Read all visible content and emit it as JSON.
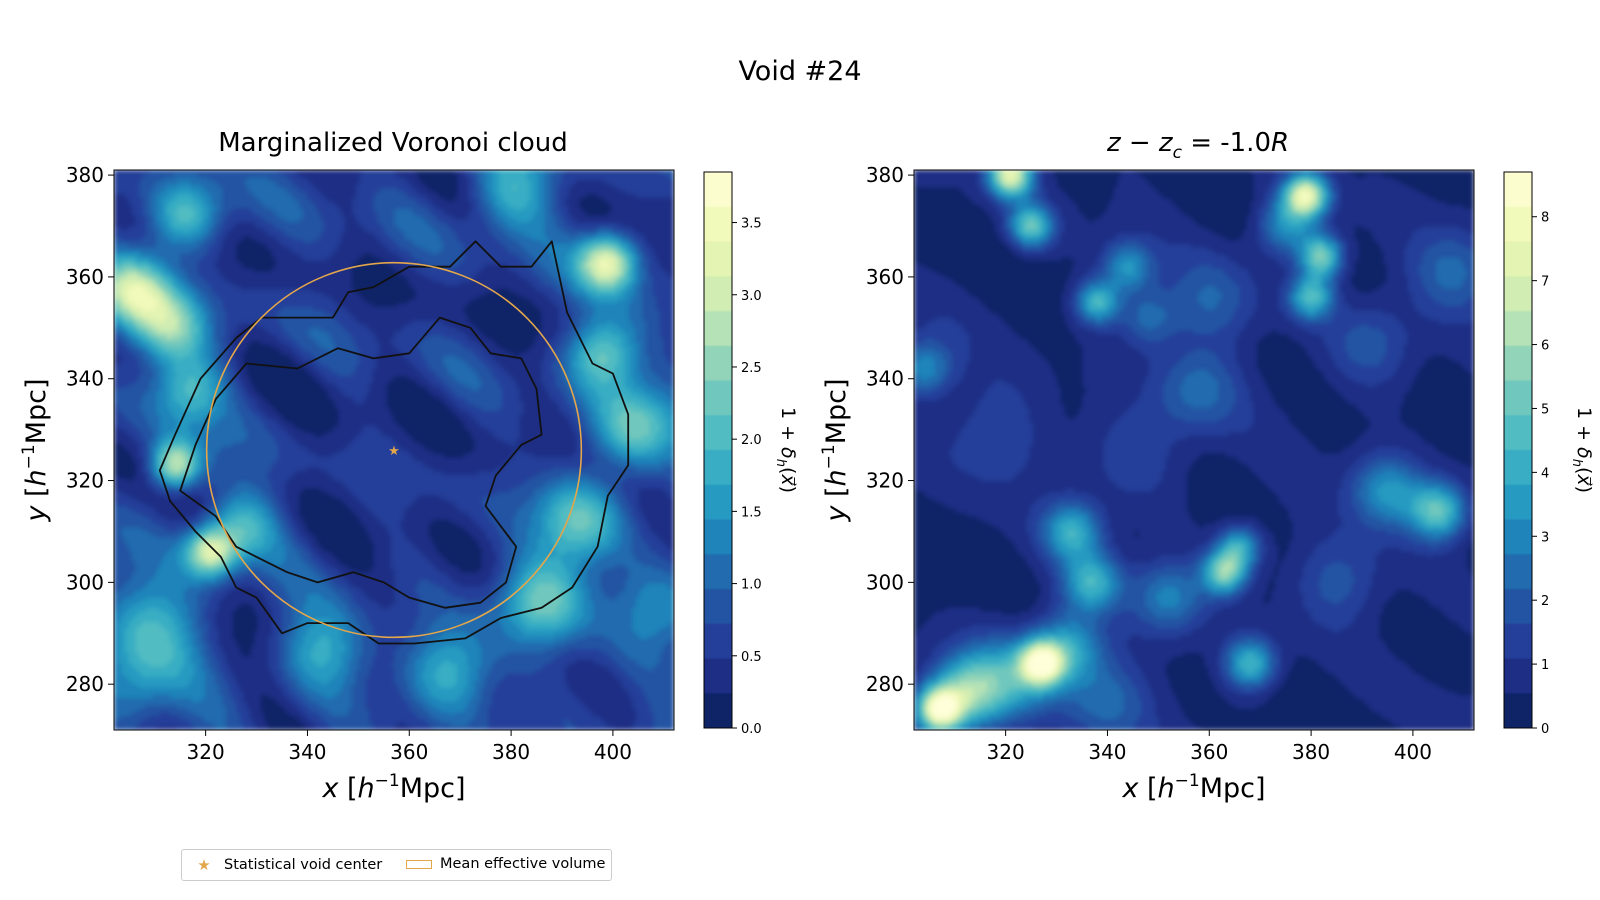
{
  "figure": {
    "title": "Void #24",
    "legend": [
      {
        "label": "Statistical void center",
        "marker": "star",
        "color": "#e3a64b"
      },
      {
        "label": "Mean effective volume",
        "marker": "rect",
        "color": "#e3a64b"
      }
    ]
  },
  "chart_data": [
    {
      "type": "heatmap",
      "title": "Marginalized Voronoi cloud",
      "xlabel": "x [h⁻¹Mpc]",
      "ylabel": "y [h⁻¹Mpc]",
      "xlim": [
        302,
        412
      ],
      "ylim": [
        271,
        381
      ],
      "xticks": [
        320,
        340,
        360,
        380,
        400
      ],
      "yticks": [
        280,
        300,
        320,
        340,
        360,
        380
      ],
      "colormap": "YlGnBu_r",
      "colorbar": {
        "label": "1 + δh(x⃗)",
        "min": 0,
        "max": 3.85,
        "ticks": [
          "0.0",
          "0.5",
          "1.0",
          "1.5",
          "2.0",
          "2.5",
          "3.0",
          "3.5"
        ]
      },
      "void_center": [
        357,
        326
      ],
      "mean_effective_radius": 36.8,
      "blobs": [
        {
          "x": 314,
          "y": 323,
          "amp": 2.6,
          "s": 3.5
        },
        {
          "x": 321,
          "y": 306,
          "amp": 2.5,
          "s": 3.5
        },
        {
          "x": 327,
          "y": 311,
          "amp": 1.4,
          "s": 5
        },
        {
          "x": 306,
          "y": 357,
          "amp": 2.2,
          "s": 5
        },
        {
          "x": 313,
          "y": 350,
          "amp": 1.8,
          "s": 5
        },
        {
          "x": 316,
          "y": 372,
          "amp": 1.6,
          "s": 5
        },
        {
          "x": 317,
          "y": 338,
          "amp": 1.4,
          "s": 5
        },
        {
          "x": 399,
          "y": 363,
          "amp": 2.7,
          "s": 4
        },
        {
          "x": 398,
          "y": 345,
          "amp": 1.8,
          "s": 5
        },
        {
          "x": 404,
          "y": 330,
          "amp": 1.6,
          "s": 6
        },
        {
          "x": 393,
          "y": 312,
          "amp": 1.6,
          "s": 6
        },
        {
          "x": 386,
          "y": 296,
          "amp": 1.8,
          "s": 6
        },
        {
          "x": 368,
          "y": 283,
          "amp": 1.3,
          "s": 6
        },
        {
          "x": 343,
          "y": 287,
          "amp": 1.2,
          "s": 6
        },
        {
          "x": 310,
          "y": 292,
          "amp": 1.3,
          "s": 7
        },
        {
          "x": 380,
          "y": 377,
          "amp": 1.3,
          "s": 6
        },
        {
          "x": 305,
          "y": 278,
          "amp": 0.9,
          "s": 6
        },
        {
          "x": 410,
          "y": 296,
          "amp": 1.0,
          "s": 6
        }
      ],
      "contours": [
        [
          [
            311,
            322
          ],
          [
            314,
            329
          ],
          [
            319,
            340
          ],
          [
            326,
            348
          ],
          [
            331,
            352
          ],
          [
            345,
            352
          ],
          [
            348,
            357
          ],
          [
            353,
            358
          ],
          [
            360,
            362
          ],
          [
            368,
            362
          ],
          [
            373,
            367
          ],
          [
            378,
            362
          ],
          [
            384,
            362
          ],
          [
            388,
            367
          ],
          [
            391,
            353
          ],
          [
            396,
            343
          ],
          [
            400,
            341
          ],
          [
            403,
            333
          ],
          [
            403,
            323
          ],
          [
            399,
            317
          ],
          [
            397,
            307
          ],
          [
            392,
            299
          ],
          [
            386,
            295
          ],
          [
            378,
            293
          ],
          [
            371,
            289
          ],
          [
            361,
            288
          ],
          [
            354,
            288
          ],
          [
            348,
            292
          ],
          [
            340,
            292
          ],
          [
            335,
            290
          ],
          [
            330,
            297
          ],
          [
            326,
            299
          ],
          [
            323,
            305
          ],
          [
            318,
            310
          ],
          [
            313,
            316
          ],
          [
            311,
            322
          ]
        ],
        [
          [
            315,
            318
          ],
          [
            318,
            327
          ],
          [
            322,
            336
          ],
          [
            328,
            343
          ],
          [
            338,
            342
          ],
          [
            346,
            346
          ],
          [
            353,
            344
          ],
          [
            360,
            345
          ],
          [
            366,
            352
          ],
          [
            372,
            350
          ],
          [
            376,
            345
          ],
          [
            382,
            344
          ],
          [
            385,
            338
          ],
          [
            386,
            329
          ],
          [
            382,
            327
          ],
          [
            377,
            321
          ],
          [
            375,
            315
          ],
          [
            381,
            307
          ],
          [
            379,
            300
          ],
          [
            374,
            296
          ],
          [
            367,
            295
          ],
          [
            360,
            297
          ],
          [
            355,
            300
          ],
          [
            349,
            302
          ],
          [
            342,
            300
          ],
          [
            336,
            302
          ],
          [
            330,
            305
          ],
          [
            326,
            307
          ],
          [
            322,
            313
          ],
          [
            315,
            318
          ]
        ]
      ]
    },
    {
      "type": "heatmap",
      "title": "z − zc = -1.0R",
      "xlabel": "x [h⁻¹Mpc]",
      "ylabel": "y [h⁻¹Mpc]",
      "xlim": [
        302,
        412
      ],
      "ylim": [
        271,
        381
      ],
      "xticks": [
        320,
        340,
        360,
        380,
        400
      ],
      "yticks": [
        280,
        300,
        320,
        340,
        360,
        380
      ],
      "colormap": "YlGnBu_r",
      "colorbar": {
        "label": "1 + δh(x⃗)",
        "min": 0,
        "max": 8.7,
        "ticks": [
          "0",
          "1",
          "2",
          "3",
          "4",
          "5",
          "6",
          "7",
          "8"
        ]
      },
      "blobs": [
        {
          "x": 307,
          "y": 275,
          "amp": 7.5,
          "s": 3
        },
        {
          "x": 312,
          "y": 278,
          "amp": 4.5,
          "s": 5
        },
        {
          "x": 327,
          "y": 284,
          "amp": 7.0,
          "s": 3
        },
        {
          "x": 332,
          "y": 287,
          "amp": 3.5,
          "s": 5
        },
        {
          "x": 320,
          "y": 281,
          "amp": 3.0,
          "s": 6
        },
        {
          "x": 321,
          "y": 380,
          "amp": 7.0,
          "s": 3
        },
        {
          "x": 325,
          "y": 370,
          "amp": 4.5,
          "s": 3
        },
        {
          "x": 379,
          "y": 376,
          "amp": 7.0,
          "s": 3
        },
        {
          "x": 382,
          "y": 364,
          "amp": 5.0,
          "s": 3
        },
        {
          "x": 380,
          "y": 356,
          "amp": 4.0,
          "s": 3
        },
        {
          "x": 375,
          "y": 370,
          "amp": 3.0,
          "s": 4
        },
        {
          "x": 338,
          "y": 355,
          "amp": 4.0,
          "s": 3
        },
        {
          "x": 344,
          "y": 362,
          "amp": 3.0,
          "s": 3.5
        },
        {
          "x": 348,
          "y": 352,
          "amp": 2.0,
          "s": 4
        },
        {
          "x": 363,
          "y": 302,
          "amp": 5.0,
          "s": 3
        },
        {
          "x": 366,
          "y": 307,
          "amp": 3.5,
          "s": 3
        },
        {
          "x": 368,
          "y": 284,
          "amp": 4.0,
          "s": 3.5
        },
        {
          "x": 337,
          "y": 300,
          "amp": 3.5,
          "s": 4
        },
        {
          "x": 333,
          "y": 310,
          "amp": 3.5,
          "s": 4
        },
        {
          "x": 405,
          "y": 314,
          "amp": 4.5,
          "s": 4
        },
        {
          "x": 395,
          "y": 318,
          "amp": 3.0,
          "s": 5
        },
        {
          "x": 304,
          "y": 342,
          "amp": 3.0,
          "s": 4
        },
        {
          "x": 352,
          "y": 297,
          "amp": 2.5,
          "s": 5
        },
        {
          "x": 358,
          "y": 338,
          "amp": 1.8,
          "s": 6
        },
        {
          "x": 360,
          "y": 355,
          "amp": 1.6,
          "s": 6
        },
        {
          "x": 392,
          "y": 347,
          "amp": 1.5,
          "s": 6
        },
        {
          "x": 385,
          "y": 300,
          "amp": 1.5,
          "s": 6
        },
        {
          "x": 345,
          "y": 325,
          "amp": 1.2,
          "s": 7
        },
        {
          "x": 318,
          "y": 330,
          "amp": 1.2,
          "s": 7
        },
        {
          "x": 408,
          "y": 361,
          "amp": 1.8,
          "s": 6
        },
        {
          "x": 340,
          "y": 277,
          "amp": 1.8,
          "s": 6
        }
      ]
    }
  ]
}
